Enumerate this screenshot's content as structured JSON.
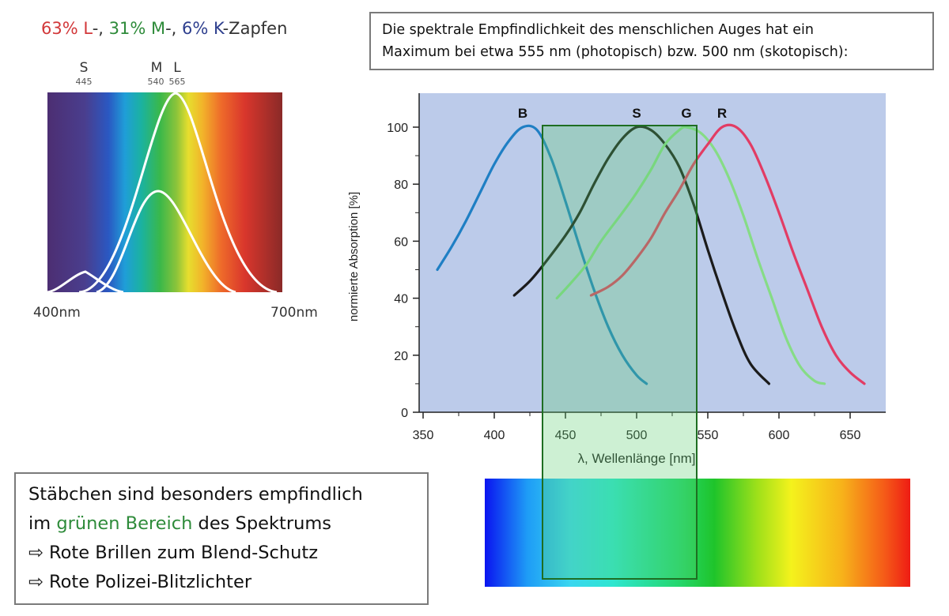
{
  "cone_panel": {
    "title_parts": [
      "63% L",
      "-, ",
      "31% M",
      "-, ",
      "6% K",
      "-Zapfen"
    ],
    "cones": [
      {
        "letter": "S",
        "peak": "445"
      },
      {
        "letter": "M",
        "peak": "540"
      },
      {
        "letter": "L",
        "peak": "565"
      }
    ],
    "range_start": "400nm",
    "range_end": "700nm"
  },
  "info_box": {
    "line1": "Die spektrale Empfindlichkeit des menschlichen Auges hat ein",
    "line2": "Maximum bei etwa 555 nm (photopisch) bzw. 500 nm (skotopisch):"
  },
  "rods_box": {
    "line1": "Stäbchen sind besonders empfindlich",
    "line2_pre": "im ",
    "line2_highlight": "grünen Bereich",
    "line2_post": " des Spektrums",
    "line3": "⇨ Rote Brillen zum Blend-Schutz",
    "line4": "⇨ Rote Polizei-Blitzlichter"
  },
  "colors": {
    "L": "#d2383a",
    "M": "#2e8b3a",
    "K": "#2e3f8e",
    "plot_bg": "#bccbea",
    "B": "#1f7fc4",
    "S": "#1b1b1b",
    "G": "#86dc86",
    "R": "#e23c64",
    "highlight_border": "#1e6e22"
  },
  "chart_data": {
    "type": "line",
    "xlabel": "λ, Wellenlänge [nm]",
    "ylabel": "normierte Absorption [%]",
    "xlim": [
      350,
      670
    ],
    "ylim": [
      0,
      100
    ],
    "x_ticks": [
      350,
      400,
      450,
      500,
      550,
      600,
      650
    ],
    "y_ticks": [
      0,
      20,
      40,
      60,
      80,
      100
    ],
    "highlight_range": [
      435,
      545
    ],
    "series": [
      {
        "name": "B",
        "color": "#1f7fc4",
        "points": [
          [
            360,
            50
          ],
          [
            370,
            58
          ],
          [
            380,
            67
          ],
          [
            390,
            77
          ],
          [
            400,
            87
          ],
          [
            410,
            95
          ],
          [
            420,
            100
          ],
          [
            430,
            99
          ],
          [
            440,
            89
          ],
          [
            450,
            74
          ],
          [
            460,
            58
          ],
          [
            470,
            43
          ],
          [
            480,
            30
          ],
          [
            490,
            20
          ],
          [
            500,
            13
          ],
          [
            507,
            10
          ]
        ]
      },
      {
        "name": "S",
        "color": "#1b1b1b",
        "points": [
          [
            414,
            41
          ],
          [
            425,
            46
          ],
          [
            435,
            52
          ],
          [
            450,
            62
          ],
          [
            460,
            70
          ],
          [
            470,
            80
          ],
          [
            480,
            89
          ],
          [
            490,
            96
          ],
          [
            500,
            100
          ],
          [
            510,
            99
          ],
          [
            520,
            94
          ],
          [
            530,
            86
          ],
          [
            540,
            73
          ],
          [
            550,
            57
          ],
          [
            560,
            42
          ],
          [
            570,
            28
          ],
          [
            580,
            17
          ],
          [
            593,
            10
          ]
        ]
      },
      {
        "name": "G",
        "color": "#86dc86",
        "points": [
          [
            444,
            40
          ],
          [
            455,
            46
          ],
          [
            465,
            52
          ],
          [
            475,
            60
          ],
          [
            490,
            70
          ],
          [
            500,
            77
          ],
          [
            510,
            85
          ],
          [
            520,
            94
          ],
          [
            530,
            99
          ],
          [
            535,
            100
          ],
          [
            545,
            98
          ],
          [
            555,
            92
          ],
          [
            565,
            82
          ],
          [
            575,
            69
          ],
          [
            585,
            54
          ],
          [
            595,
            40
          ],
          [
            605,
            26
          ],
          [
            615,
            16
          ],
          [
            625,
            11
          ],
          [
            632,
            10
          ]
        ]
      },
      {
        "name": "R",
        "color": "#e23c64",
        "points": [
          [
            468,
            41
          ],
          [
            480,
            44
          ],
          [
            490,
            48
          ],
          [
            500,
            54
          ],
          [
            510,
            61
          ],
          [
            520,
            70
          ],
          [
            530,
            78
          ],
          [
            540,
            87
          ],
          [
            550,
            94
          ],
          [
            560,
            100
          ],
          [
            570,
            100
          ],
          [
            580,
            94
          ],
          [
            590,
            83
          ],
          [
            600,
            70
          ],
          [
            610,
            56
          ],
          [
            620,
            43
          ],
          [
            630,
            30
          ],
          [
            640,
            20
          ],
          [
            650,
            14
          ],
          [
            660,
            10
          ]
        ]
      }
    ]
  }
}
